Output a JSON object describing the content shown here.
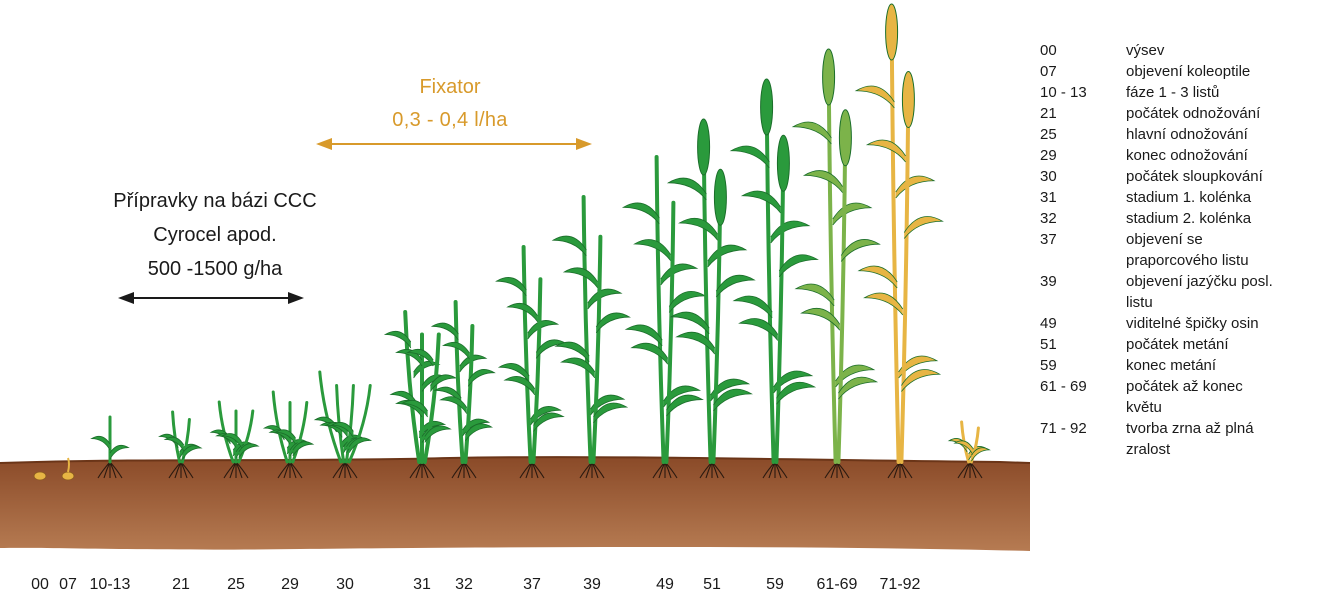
{
  "colors": {
    "soil_top": "#8a4a28",
    "soil_bottom": "#b67b52",
    "leaf_green": "#2a9a3c",
    "leaf_dark": "#1b6e2a",
    "ripening_green": "#7cb34a",
    "ripe_gold": "#e7b544",
    "fixator_orange": "#d89a2b",
    "arrow_black": "#1a1a1a"
  },
  "fixator": {
    "title": "Fixator",
    "rate": "0,3 - 0,4  l/ha"
  },
  "ccc": {
    "line1": "Přípravky na bázi CCC",
    "line2": "Cyrocel apod.",
    "line3": "500 -1500 g/ha"
  },
  "stages": [
    {
      "label": "00",
      "kind": "seed"
    },
    {
      "label": "07",
      "kind": "seed"
    },
    {
      "label": "10-13",
      "kind": "green",
      "height": 45,
      "tillers": 1
    },
    {
      "label": "21",
      "kind": "green",
      "height": 50,
      "tillers": 2
    },
    {
      "label": "25",
      "kind": "green",
      "height": 60,
      "tillers": 3
    },
    {
      "label": "29",
      "kind": "green",
      "height": 70,
      "tillers": 3
    },
    {
      "label": "30",
      "kind": "green",
      "height": 90,
      "tillers": 4
    },
    {
      "label": "31",
      "kind": "green",
      "height": 150,
      "tillers": 3
    },
    {
      "label": "32",
      "kind": "green",
      "height": 160,
      "tillers": 2
    },
    {
      "label": "37",
      "kind": "green",
      "height": 215,
      "tillers": 2
    },
    {
      "label": "39",
      "kind": "green",
      "height": 265,
      "tillers": 2
    },
    {
      "label": "49",
      "kind": "green",
      "height": 305,
      "tillers": 2
    },
    {
      "label": "51",
      "kind": "ear",
      "height": 335,
      "tillers": 2
    },
    {
      "label": "59",
      "kind": "ear",
      "height": 375,
      "tillers": 2
    },
    {
      "label": "61-69",
      "kind": "flower",
      "height": 405,
      "tillers": 2
    },
    {
      "label": "71-92",
      "kind": "ripe",
      "height": 450,
      "tillers": 2
    },
    {
      "label": "",
      "kind": "stubble",
      "height": 40,
      "tillers": 2
    }
  ],
  "legend": [
    {
      "code": "00",
      "desc": "výsev"
    },
    {
      "code": "07",
      "desc": "objevení koleoptile"
    },
    {
      "code": "10 - 13",
      "desc": "fáze 1 - 3 listů"
    },
    {
      "code": "21",
      "desc": "počátek odnožování"
    },
    {
      "code": "25",
      "desc": "hlavní odnožování"
    },
    {
      "code": "29",
      "desc": "konec odnožování"
    },
    {
      "code": "30",
      "desc": "počátek sloupkování"
    },
    {
      "code": "31",
      "desc": "stadium 1. kolénka"
    },
    {
      "code": "32",
      "desc": "stadium 2. kolénka"
    },
    {
      "code": "37",
      "desc": "objevení se"
    },
    {
      "code": "",
      "desc": "praporcového listu"
    },
    {
      "code": "39",
      "desc": "objevení jazýčku posl."
    },
    {
      "code": "",
      "desc": "listu"
    },
    {
      "code": "49",
      "desc": "viditelné špičky osin"
    },
    {
      "code": "51",
      "desc": "počátek metání"
    },
    {
      "code": "59",
      "desc": "konec metání"
    },
    {
      "code": "61 - 69",
      "desc": "počátek až konec"
    },
    {
      "code": "",
      "desc": "květu"
    },
    {
      "code": "71 - 92",
      "desc": "tvorba zrna až plná"
    },
    {
      "code": "",
      "desc": "zralost"
    }
  ]
}
